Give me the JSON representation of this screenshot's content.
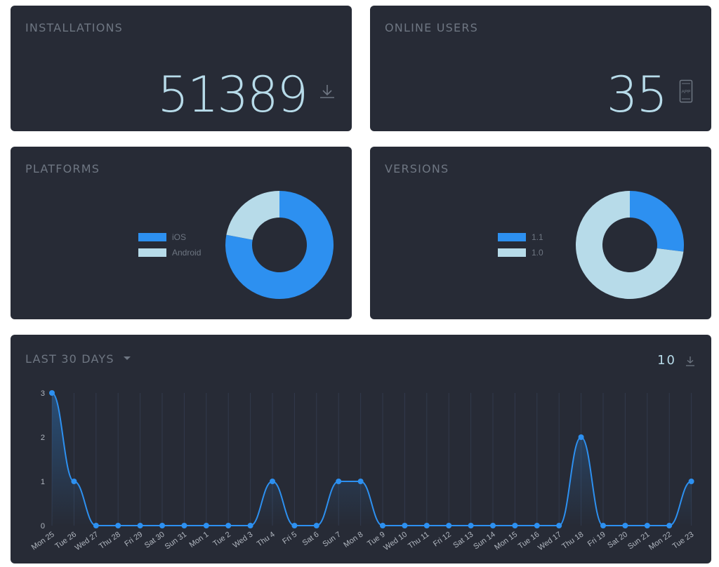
{
  "colors": {
    "card_bg": "#272b36",
    "title": "#6e7682",
    "accent_blue": "#2d90f0",
    "light_blue": "#b7dbe9",
    "grid": "#323a4c"
  },
  "installations": {
    "title": "INSTALLATIONS",
    "value": "51389",
    "icon": "download-icon"
  },
  "online_users": {
    "title": "ONLINE USERS",
    "value": "35",
    "icon": "mobile-app-icon",
    "icon_text": "APP"
  },
  "platforms": {
    "title": "PLATFORMS",
    "legend": [
      "iOS",
      "Android"
    ]
  },
  "versions": {
    "title": "VERSIONS",
    "legend": [
      "1.1",
      "1.0"
    ]
  },
  "last30": {
    "title": "LAST 30 DAYS",
    "total": "10",
    "icon": "download-icon"
  },
  "chart_data": [
    {
      "type": "pie",
      "labels": [
        "iOS",
        "Android"
      ],
      "values": [
        78,
        22
      ],
      "colors": [
        "#2d90f0",
        "#b7dbe9"
      ],
      "donut": true
    },
    {
      "type": "pie",
      "labels": [
        "1.1",
        "1.0"
      ],
      "values": [
        27,
        73
      ],
      "colors": [
        "#2d90f0",
        "#b7dbe9"
      ],
      "donut": true
    },
    {
      "type": "line",
      "categories": [
        "Mon 25",
        "Tue 26",
        "Wed 27",
        "Thu 28",
        "Fri 29",
        "Sat 30",
        "Sun 31",
        "Mon 1",
        "Tue 2",
        "Wed 3",
        "Thu 4",
        "Fri 5",
        "Sat 6",
        "Sun 7",
        "Mon 8",
        "Tue 9",
        "Wed 10",
        "Thu 11",
        "Fri 12",
        "Sat 13",
        "Sun 14",
        "Mon 15",
        "Tue 16",
        "Wed 17",
        "Thu 18",
        "Fri 19",
        "Sat 20",
        "Sun 21",
        "Mon 22",
        "Tue 23"
      ],
      "values": [
        3,
        1,
        0,
        0,
        0,
        0,
        0,
        0,
        0,
        0,
        1,
        0,
        0,
        1,
        1,
        0,
        0,
        0,
        0,
        0,
        0,
        0,
        0,
        0,
        2,
        0,
        0,
        0,
        0,
        1
      ],
      "yticks": [
        0,
        1,
        2,
        3
      ],
      "ylim": [
        0,
        3
      ],
      "grid": true,
      "color": "#2d90f0"
    }
  ]
}
